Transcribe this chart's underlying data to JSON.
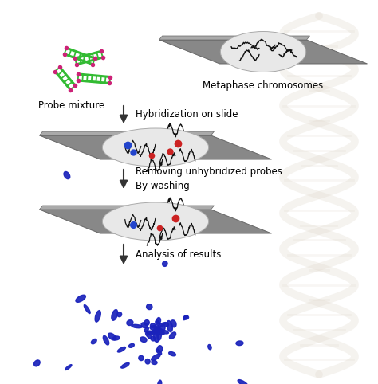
{
  "bg_color": "#ffffff",
  "slide_color": "#888888",
  "slide_top_color": "#aaaaaa",
  "slide_edge_color": "#666666",
  "ellipse_color": "#e8e8e8",
  "ellipse_edge": "#aaaaaa",
  "probe_green": "#33bb33",
  "probe_pink": "#cc2277",
  "chrom_color": "#111111",
  "blue_dot": "#2244cc",
  "red_dot": "#cc2222",
  "blue_chrom": "#1a22bb",
  "arrow_color": "#333333",
  "dna_color": "#ddccbb",
  "labels": {
    "probe_mixture": "Probe mixture",
    "metaphase": "Metaphase chromosomes",
    "step1": "Hybridization on slide",
    "step2": "Removing unhybridized probes\nBy washing",
    "step3": "Analysis of results"
  },
  "text_fontsize": 8.5
}
